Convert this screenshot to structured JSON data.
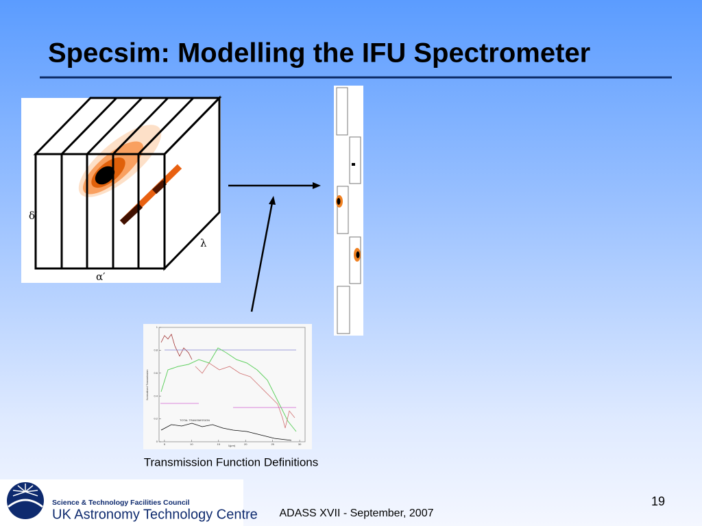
{
  "title": "Specsim: Modelling the IFU Spectrometer",
  "cube": {
    "delta_label": "δ′",
    "alpha_label": "α′",
    "lambda_label": "λ"
  },
  "inset": {
    "y_label": "Normalised Transmission",
    "x_label": "λ(μm)",
    "total_label": "TOTAL TRANSMISSION",
    "xticks": [
      5,
      10,
      15,
      20,
      25,
      30
    ],
    "yticks": [
      0,
      0.2,
      0.4,
      0.6,
      0.8,
      1
    ],
    "xlim": [
      4,
      31
    ],
    "ylim": [
      0,
      1
    ]
  },
  "caption": "Transmission Function Definitions",
  "logo": {
    "council": "Science & Technology Facilities Council",
    "centre": "UK Astronomy Technology Centre"
  },
  "footer": "ADASS XVII - September, 2007",
  "page_number": 19
}
